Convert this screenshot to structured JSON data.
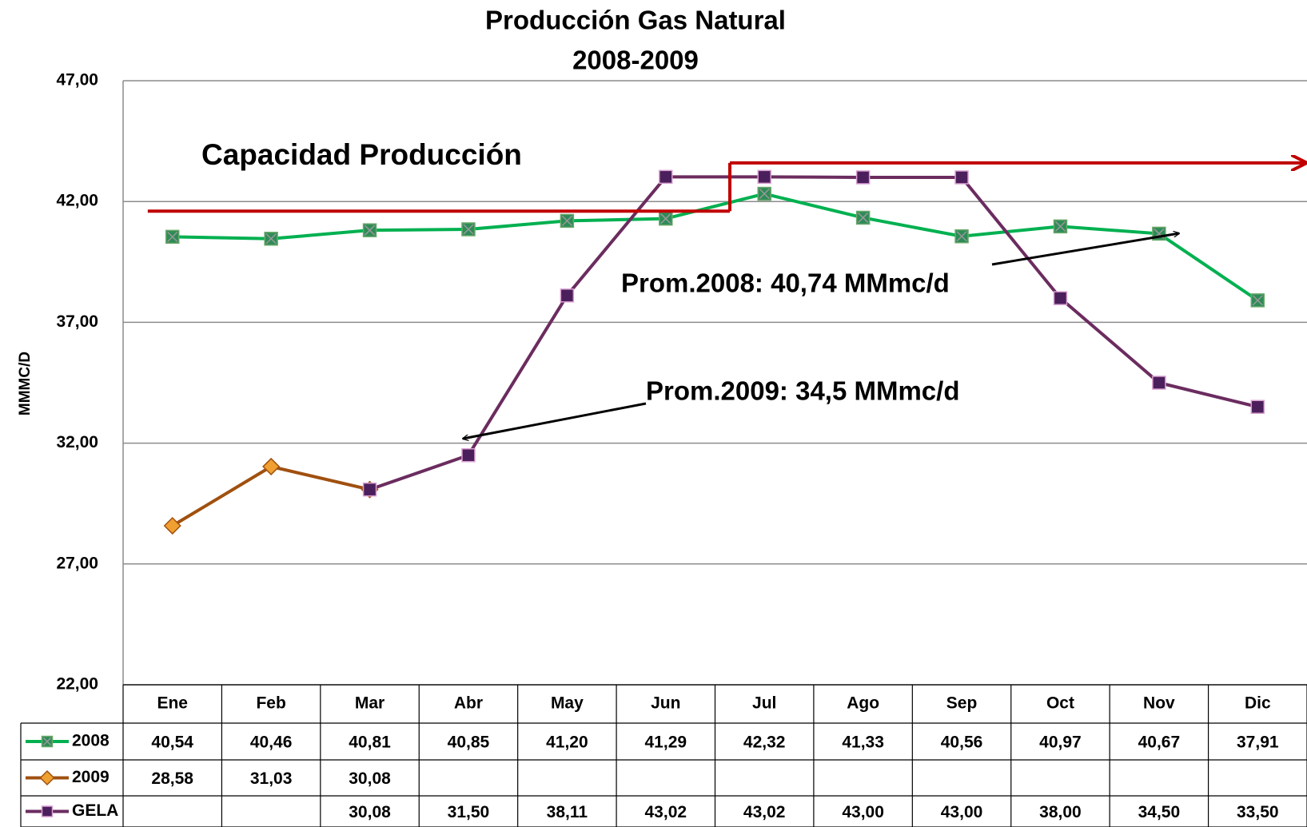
{
  "chart_data": {
    "type": "line",
    "title": [
      "Producción Gas Natural",
      "2008-2009"
    ],
    "ylabel": "MMMC/D",
    "categories": [
      "Ene",
      "Feb",
      "Mar",
      "Abr",
      "May",
      "Jun",
      "Jul",
      "Ago",
      "Sep",
      "Oct",
      "Nov",
      "Dic"
    ],
    "series": [
      {
        "name": "2008",
        "color": "#00b050",
        "marker": "square-x",
        "marker_color": "#2e8b57",
        "values": [
          40.54,
          40.46,
          40.81,
          40.85,
          41.2,
          41.29,
          42.32,
          41.33,
          40.56,
          40.97,
          40.67,
          37.91
        ],
        "value_labels": [
          "40,54",
          "40,46",
          "40,81",
          "40,85",
          "41,20",
          "41,29",
          "42,32",
          "41,33",
          "40,56",
          "40,97",
          "40,67",
          "37,91"
        ]
      },
      {
        "name": "2009",
        "color": "#a0500f",
        "marker": "diamond",
        "marker_color": "#f0a030",
        "values": [
          28.58,
          31.03,
          30.08,
          null,
          null,
          null,
          null,
          null,
          null,
          null,
          null,
          null
        ],
        "value_labels": [
          "28,58",
          "31,03",
          "30,08",
          null,
          null,
          null,
          null,
          null,
          null,
          null,
          null,
          null
        ]
      },
      {
        "name": "GELA",
        "color": "#6b2c5f",
        "marker": "square",
        "marker_color": "#4b1f5c",
        "values": [
          null,
          null,
          30.08,
          31.5,
          38.11,
          43.02,
          43.02,
          43.0,
          43.0,
          38.0,
          34.5,
          33.5
        ],
        "value_labels": [
          null,
          null,
          "30,08",
          "31,50",
          "38,11",
          "43,02",
          "43,02",
          "43,00",
          "43,00",
          "38,00",
          "34,50",
          "33,50"
        ]
      }
    ],
    "capacity": {
      "label": "Capacidad Producción",
      "color": "#c00000",
      "values": [
        41.6,
        43.6
      ]
    },
    "annotations": [
      "Prom.2008: 40,74 MMmc/d",
      "Prom.2009: 34,5 MMmc/d"
    ],
    "ylim": [
      22,
      47
    ],
    "yticks": [
      {
        "value": 22,
        "label": "22,00"
      },
      {
        "value": 27,
        "label": "27,00"
      },
      {
        "value": 32,
        "label": "32,00"
      },
      {
        "value": 37,
        "label": "37,00"
      },
      {
        "value": 42,
        "label": "42,00"
      },
      {
        "value": 47,
        "label": "47,00"
      }
    ],
    "grid": true
  }
}
